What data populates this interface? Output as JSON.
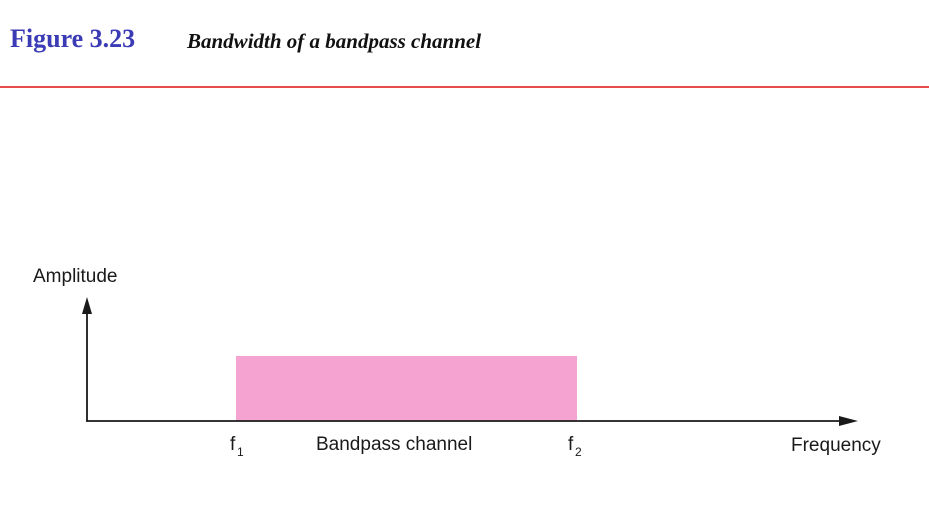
{
  "header": {
    "figure_number": "Figure 3.23",
    "caption": "Bandwidth of a bandpass channel",
    "number_color": "#3b3bb5",
    "rule_color": "#e84b4b"
  },
  "diagram": {
    "y_axis_label": "Amplitude",
    "x_axis_label": "Frequency",
    "band_label": "Bandpass channel",
    "lower_edge": {
      "base": "f",
      "sub": "1"
    },
    "upper_edge": {
      "base": "f",
      "sub": "2"
    },
    "band_color": "#f5a3d0"
  }
}
